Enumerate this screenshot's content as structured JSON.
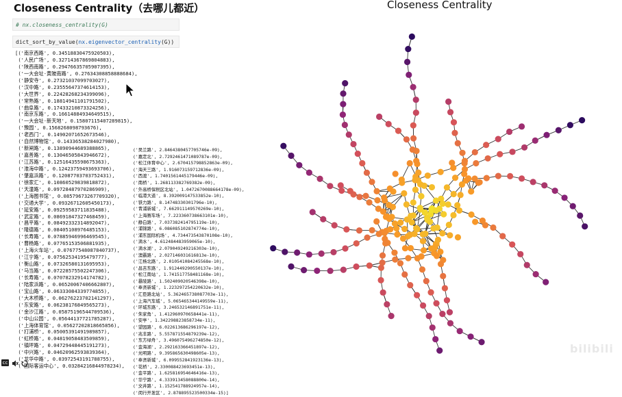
{
  "header": {
    "title": "Closeness Centrality（去哪儿都近）"
  },
  "cells": {
    "comment": "# nx.closeness_centrality(G)",
    "code_prefix": "dict_sort_by_value(",
    "code_fn": "nx.eigenvector_centrality",
    "code_suffix": "(G))"
  },
  "output_left": [
    "[('南京西路', 0.34518830475920503),",
    " ('人民广场', 0.32714367869804883),",
    " ('陕西南路', 0.29476635705907395),",
    " ('一大会址·黄陂南路', 0.27634308858888684),",
    " ('静安寺', 0.27321037099703027),",
    " ('汉中路', 0.23555647374614153),",
    " ('大世界', 0.22428268234399096),",
    " ('常熟路', 0.18814941101791502),",
    " ('曲阜路', 0.17433210873324256),",
    " ('南京东路', 0.16614884934649515),",
    " ('一大会址·新天地', 0.15807115407289815),",
    " ('豫园', 0.1568268098793676),",
    " ('老西门', 0.14902071652673546),",
    " ('自然博物馆', 0.14336538284027980),",
    " ('新闸路', 0.13890944689388865),",
    " ('嘉善路', 0.13046505843946672),",
    " ('江苏路', 0.12516435598675363),",
    " ('淮海中路', 0.12423759493693706),",
    " ('肇嘉浜路', 0.12087703703752431),",
    " ('徐家汇', 0.10860529839818872),",
    " ('天潼路', 0.09728487970286909),",
    " ('上海图书馆', 0.08579673267709320),",
    " ('交通大学', 0.09326712605450173),",
    " ('延安路', 0.09259583711835488),",
    " ('武定路', 0.08691847327468459),",
    " ('昌平路', 0.08492332314892047),",
    " ('隆德路', 0.08405108976485153),",
    " ('长寿路', 0.07885946996469545),",
    " ('曹杨路', 0.07765153506881935),",
    " ('上海火车站', 0.07677548087840737),",
    " ('江宁路', 0.07562534195479777),",
    " ('衡山路', 0.07326580131695953),",
    " ('马当路', 0.07228575502247306),",
    " ('长寿路', 0.07078232914174782),",
    " ('陆家浜路', 0.06520067406662807),",
    " ('宝山路', 0.06333084339774855),",
    " ('大木桥路', 0.06276223702141297),",
    " ('东安路', 0.06238176849565273),",
    " ('金沙江路', 0.05875196544709536),",
    " ('中山公园', 0.05644137721785287),",
    " ('上海体育馆', 0.05627202818665856),",
    " ('打浦桥', 0.05005391491989857),",
    " ('虹桥路', 0.04819058483509859),",
    " ('镇坪路', 0.04729448445191273),",
    " ('中兴路', 0.04620962593839364),",
    " ('龙华中路', 0.03972543191788755),",
    " ('国际客运中心', 0.03284216844978234),"
  ],
  "output_right": [
    "('吴兰路', 2.8464380457705746e-09),",
    "('嘉定北', 2.7292461471089787e-09),",
    "('松江体育中心', 2.670415798852863e-09),",
    "('海天三路', 1.916073159712836e-09),",
    "('西渡', 1.7401561445179446e-09),",
    "('南桥', 1.268113382769382e-09),",
    "('外高桥保税区北站', 1.0472670088664178e-09),",
    "('临港大道', 8.392009147533852e-10),",
    "('铁力路', 8.14748330301796e-10),",
    "('青浦新城', 7.662911149570269e-10),",
    "('上海赛车场', 7.223360738663101e-10),",
    "('静白路', 7.037382414795119e-10),",
    "('浦锦路', 6.086085102874774e-10),",
    "('浦东国际机场', 4.734473543870108e-10),",
    "('滴水', 4.612484483959065e-10),",
    "('滴水湖', 2.079049249216303e-10),",
    "('澳霸路', 2.027146031616813e-10),",
    "('江杨北路', 2.010541084245568e-10),",
    "('昌吉东路', 1.912449290550137e-10),",
    "('松江南站', 1.741517758481168e-10),",
    "('暴陵路', 1.502409020546398e-10),",
    "('奉贤新城', 1.223297254220632e-10),",
    "('汇臣路北站', 5.362465738087703e-11),",
    "('上海汽车城', 5.065465344149559e-11),",
    "('环城东路', 3.246532146891751e-11),",
    "('朱家角', 1.412960970658441e-11),",
    "('安亭', 1.342298823858734e-11),",
    "('望园路', 6.022613686296197e-12),",
    "('兆丰路', 5.557871554879239e-12),",
    "('东方绿舟', 3.496075496274850e-12),",
    "('金海湖', 2.292163366451897e-12),",
    "('光明路', 9.395865630498605e-13),",
    "('奉贤新城', 6.099552841923136e-13),",
    "('花桥', 2.330088423693451e-13),",
    "('金平路', 1.625816954646416e-13),",
    "('华宁路', 4.333913458088800e-14),",
    "('文井路', 1.152541788924957e-14),",
    "('闵行开发区', 2.878895523500334e-15)]"
  ],
  "graph": {
    "title": "Closeness Centrality"
  },
  "watermark": {
    "text": "bilibili"
  },
  "controls": {
    "cc_label": "cc"
  },
  "colors": {
    "low": "#2c0b5e",
    "mid": "#b83d75",
    "high": "#f2e22d",
    "edge": "#333333"
  }
}
